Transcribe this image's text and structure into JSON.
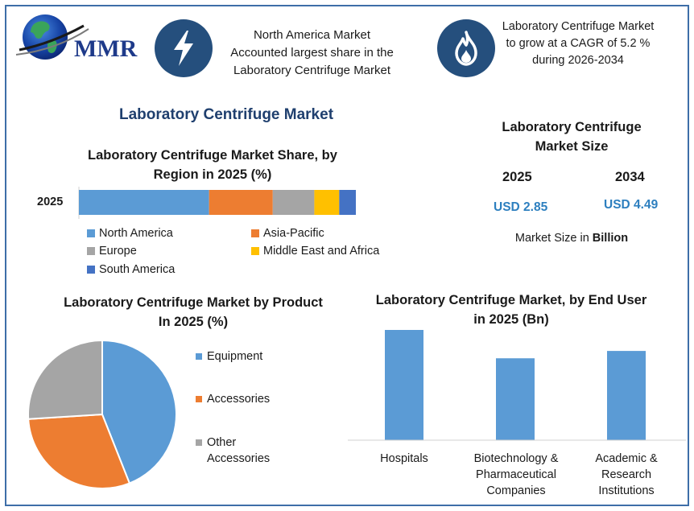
{
  "brand": {
    "logo_text": "MMR"
  },
  "header": {
    "highlight1": {
      "icon": "lightning-bolt-icon",
      "lines": [
        "North America Market",
        "Accounted largest share in the",
        "Laboratory Centrifuge Market"
      ]
    },
    "highlight2": {
      "icon": "flame-icon",
      "lines": [
        "Laboratory Centrifuge Market",
        "to grow at a CAGR of  5.2 %",
        "during 2026-2034"
      ]
    }
  },
  "main_title": "Laboratory Centrifuge Market",
  "market_size": {
    "title_lines": [
      "Laboratory Centrifuge",
      "Market Size"
    ],
    "years": [
      "2025",
      "2034"
    ],
    "values": [
      "USD 2.85",
      "USD 4.49"
    ],
    "unit_prefix": "Market Size in ",
    "unit_bold": "Billion"
  },
  "colors": {
    "blue": "#5b9bd5",
    "orange": "#ed7d31",
    "gray": "#a5a5a5",
    "yellow": "#ffc000",
    "dark_blue": "#4472c4",
    "frame": "#3d6ea8",
    "circle": "#254f7d",
    "title": "#1f3f6e",
    "usd": "#2d7fbf"
  },
  "chart_data": [
    {
      "type": "bar",
      "orientation": "horizontal-stacked",
      "title_lines": [
        "Laboratory Centrifuge Market Share, by",
        "Region in 2025 (%)"
      ],
      "categories": [
        "2025"
      ],
      "series": [
        {
          "name": "North America",
          "values": [
            47
          ]
        },
        {
          "name": "Asia-Pacific",
          "values": [
            23
          ]
        },
        {
          "name": "Europe",
          "values": [
            15
          ]
        },
        {
          "name": "Middle East and Africa",
          "values": [
            9
          ]
        },
        {
          "name": "South America",
          "values": [
            6
          ]
        }
      ],
      "legend": "bottom"
    },
    {
      "type": "pie",
      "title_lines": [
        "Laboratory Centrifuge Market by Product",
        "In 2025 (%)"
      ],
      "categories": [
        "Equipment",
        "Accessories",
        "Other Accessories"
      ],
      "legend_lines": [
        [
          "Equipment"
        ],
        [
          "Accessories"
        ],
        [
          "Other",
          "Accessories"
        ]
      ],
      "values": [
        44,
        30,
        26
      ],
      "legend": "right"
    },
    {
      "type": "bar",
      "title_lines": [
        "Laboratory Centrifuge Market, by End User",
        "in 2025 (Bn)"
      ],
      "categories": [
        "Hospitals",
        "Biotechnology & Pharmaceutical Companies",
        "Academic & Research Institutions"
      ],
      "category_lines": [
        [
          "Hospitals"
        ],
        [
          "Biotechnology &",
          "Pharmaceutical",
          "Companies"
        ],
        [
          "Academic &",
          "Research",
          "Institutions"
        ]
      ],
      "values": [
        1.05,
        0.78,
        0.85
      ],
      "ylim": [
        0,
        1.05
      ],
      "grid": false
    }
  ]
}
